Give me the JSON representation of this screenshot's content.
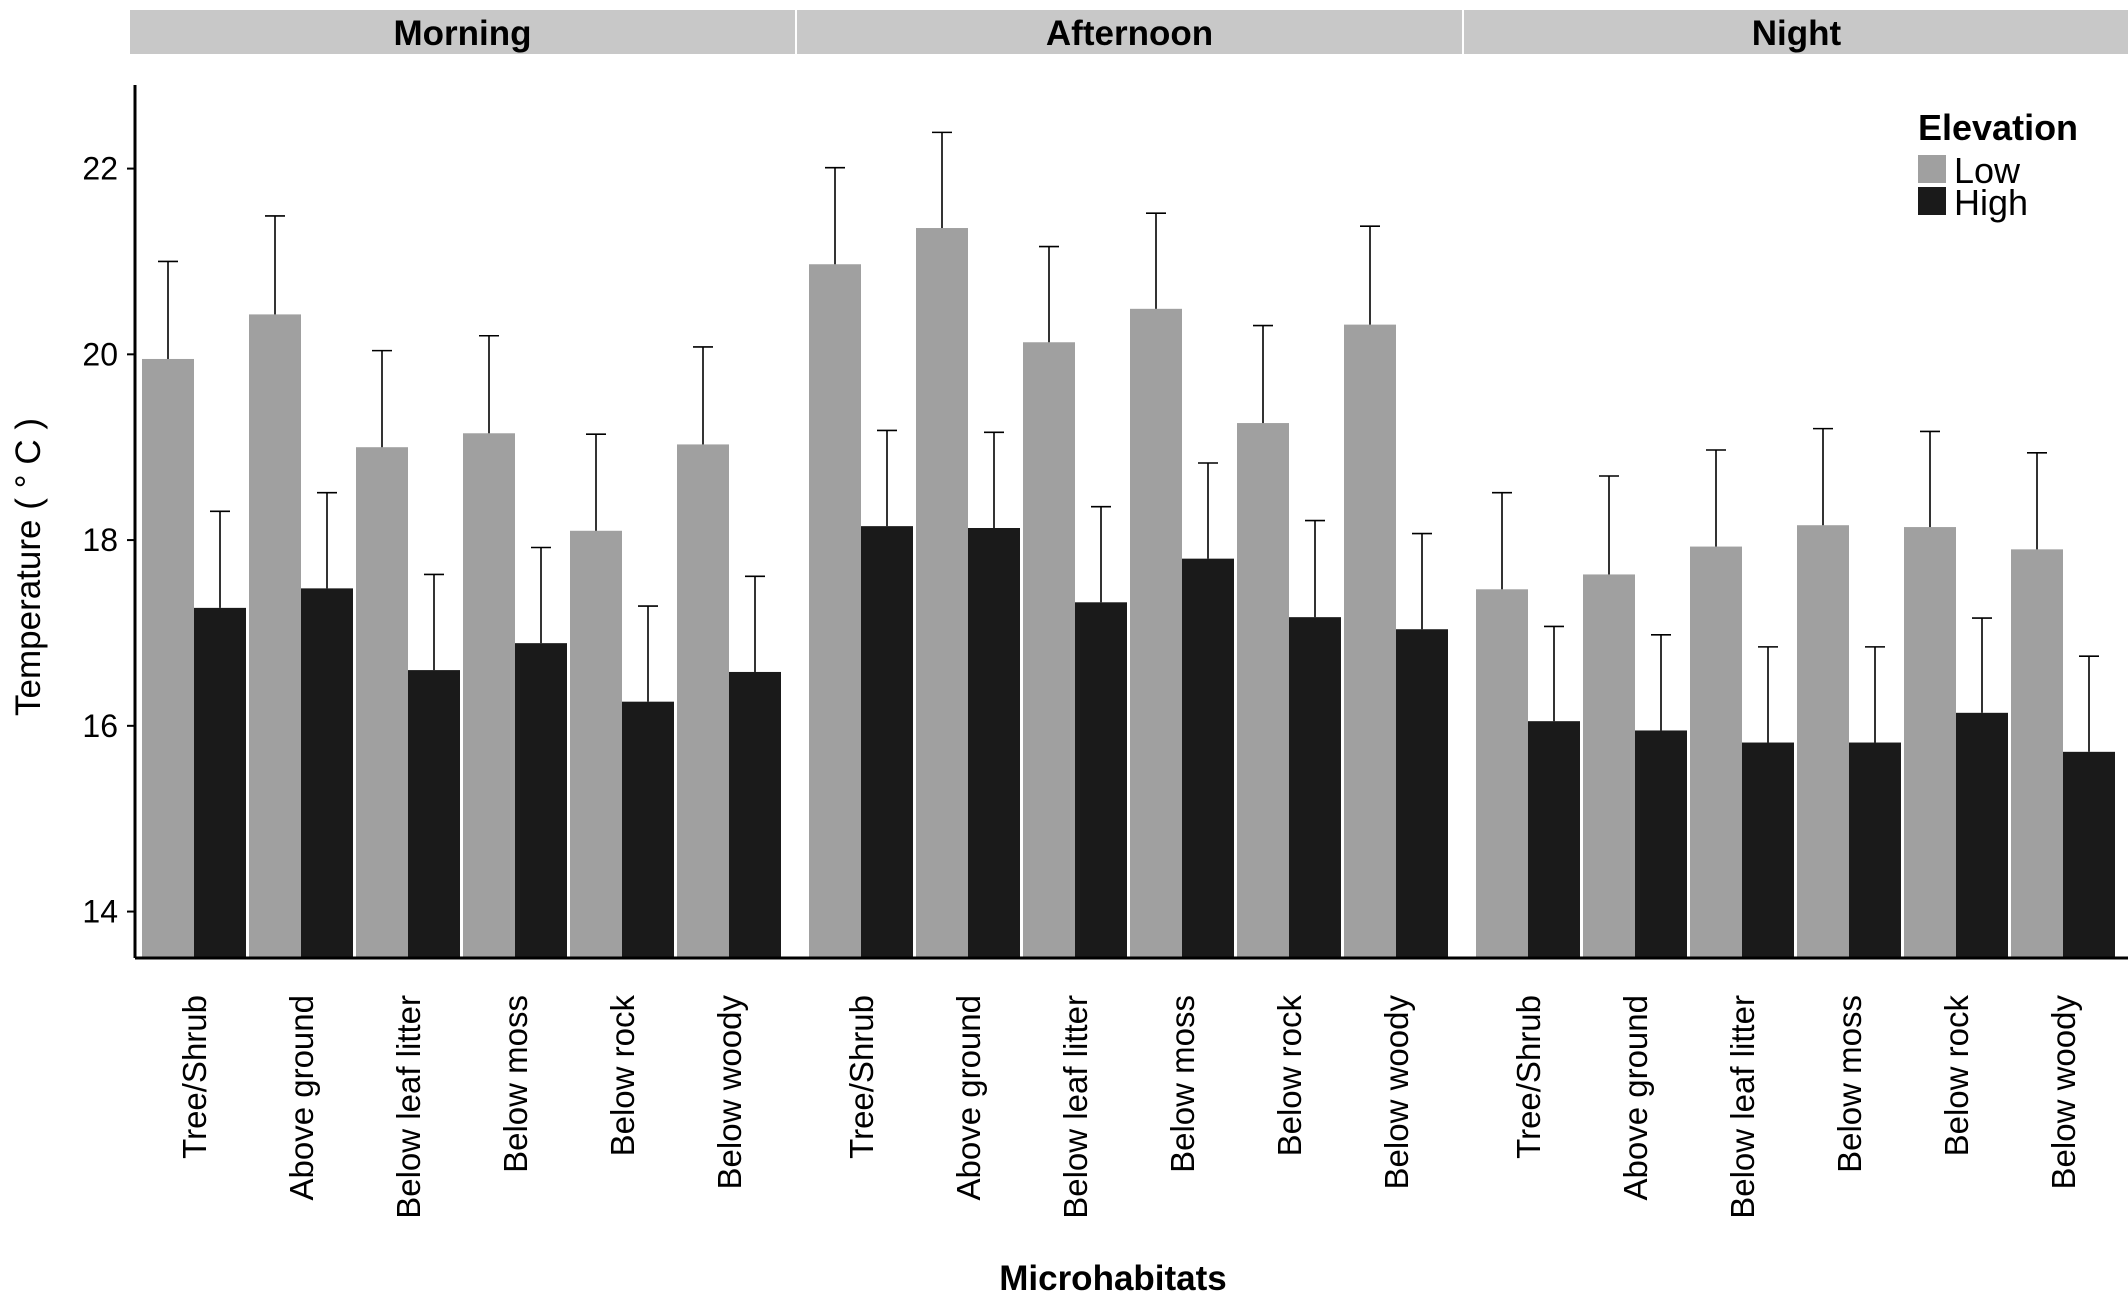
{
  "chart_data": {
    "type": "bar",
    "facets": [
      "Morning",
      "Afternoon",
      "Night"
    ],
    "categories": [
      "Tree/Shrub",
      "Above ground",
      "Below leaf litter",
      "Below moss",
      "Below rock",
      "Below woody"
    ],
    "xlabel": "Microhabitats",
    "ylabel": "Temperature ( ° C )",
    "ylim": [
      13.5,
      22.9
    ],
    "yticks": [
      14,
      16,
      18,
      20,
      22
    ],
    "legend": {
      "title": "Elevation",
      "position": "top-right"
    },
    "grid": false,
    "error_bars": "upper",
    "series": [
      {
        "name": "Low",
        "color": "#a0a0a0",
        "values": [
          [
            19.95,
            20.43,
            19.0,
            19.15,
            18.1,
            19.03
          ],
          [
            20.97,
            21.36,
            20.13,
            20.49,
            19.26,
            20.32
          ],
          [
            17.47,
            17.63,
            17.93,
            18.16,
            18.14,
            17.9
          ]
        ],
        "errors": [
          [
            1.05,
            1.06,
            1.04,
            1.05,
            1.04,
            1.05
          ],
          [
            1.04,
            1.03,
            1.03,
            1.03,
            1.05,
            1.06
          ],
          [
            1.04,
            1.06,
            1.04,
            1.04,
            1.03,
            1.04
          ]
        ]
      },
      {
        "name": "High",
        "color": "#1a1a1a",
        "values": [
          [
            17.27,
            17.48,
            16.6,
            16.89,
            16.26,
            16.58
          ],
          [
            18.15,
            18.13,
            17.33,
            17.8,
            17.17,
            17.04
          ],
          [
            16.05,
            15.95,
            15.82,
            15.82,
            16.14,
            15.72
          ]
        ],
        "errors": [
          [
            1.04,
            1.03,
            1.03,
            1.03,
            1.03,
            1.03
          ],
          [
            1.03,
            1.03,
            1.03,
            1.03,
            1.04,
            1.03
          ],
          [
            1.02,
            1.03,
            1.03,
            1.03,
            1.02,
            1.03
          ]
        ]
      }
    ]
  }
}
